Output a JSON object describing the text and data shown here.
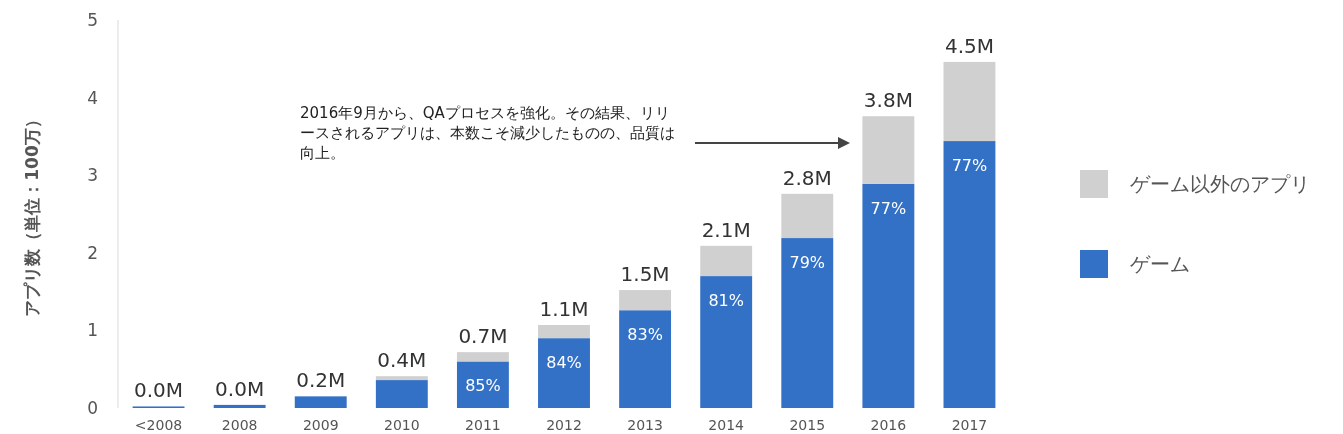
{
  "chart_data": {
    "type": "bar",
    "stacked": true,
    "ylabel": "アプリ数（単位：100万）",
    "categories": [
      "<2008",
      "2008",
      "2009",
      "2010",
      "2011",
      "2012",
      "2013",
      "2014",
      "2015",
      "2016",
      "2017"
    ],
    "series": [
      {
        "name": "ゲーム",
        "color": "#3371c7",
        "values": [
          0.02,
          0.04,
          0.15,
          0.36,
          0.6,
          0.9,
          1.26,
          1.7,
          2.19,
          2.89,
          3.44
        ]
      },
      {
        "name": "ゲーム以外のアプリ",
        "color": "#d1d0d1",
        "values": [
          0,
          0,
          0,
          0.05,
          0.12,
          0.17,
          0.26,
          0.39,
          0.57,
          0.87,
          1.02
        ]
      }
    ],
    "totals": [
      "0.0M",
      "0.0M",
      "0.2M",
      "0.4M",
      "0.7M",
      "1.1M",
      "1.5M",
      "2.1M",
      "2.8M",
      "3.8M",
      "4.5M"
    ],
    "ylim": [
      0,
      5
    ],
    "yticks": [
      0,
      1,
      2,
      3,
      4,
      5
    ],
    "grid": false,
    "legend": "right",
    "annotations": [
      "2016年9月から、QAプロセスを強化。その結果、リリースされるアプリは、本数こそ減少したものの、品質は向上。",
      {
        "text": "85%",
        "x": "2011",
        "y": 0.6
      },
      {
        "text": "84%",
        "x": "2012",
        "y": 0.9
      },
      {
        "text": "83%",
        "x": "2013",
        "y": 1.26
      },
      {
        "text": "81%",
        "x": "2014",
        "y": 1.7
      },
      {
        "text": "79%",
        "x": "2015",
        "y": 2.19
      },
      {
        "text": "77%",
        "x": "2016",
        "y": 2.89
      },
      {
        "text": "77%",
        "x": "2017",
        "y": 3.44
      }
    ]
  }
}
